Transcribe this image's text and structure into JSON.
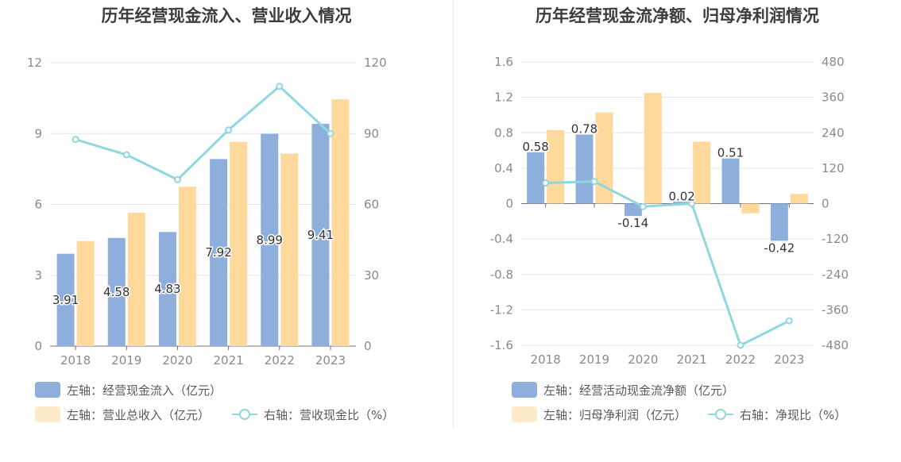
{
  "colors": {
    "bar_primary": "#8eaedb",
    "bar_secondary": "#fed99b",
    "line": "#8fd8de",
    "grid": "#e3e6f0",
    "axis": "#6e7079"
  },
  "chart_data": [
    {
      "type": "bar",
      "title": "历年经营现金流入、营业收入情况",
      "categories": [
        "2018",
        "2019",
        "2020",
        "2021",
        "2022",
        "2023"
      ],
      "left_axis": {
        "ylim": [
          0,
          12
        ],
        "ticks": [
          "0",
          "3",
          "6",
          "9",
          "12"
        ]
      },
      "right_axis": {
        "ylim": [
          0,
          120
        ],
        "ticks": [
          "0",
          "30",
          "60",
          "90",
          "120"
        ]
      },
      "series": [
        {
          "name": "左轴：经营现金流入（亿元）",
          "type": "bar",
          "axis": "left",
          "values": [
            3.91,
            4.58,
            4.83,
            7.92,
            8.99,
            9.41
          ],
          "labels": [
            "3.91",
            "4.58",
            "4.83",
            "7.92",
            "8.99",
            "9.41"
          ]
        },
        {
          "name": "左轴：营业总收入（亿元）",
          "type": "bar",
          "axis": "left",
          "values": [
            4.45,
            5.65,
            6.75,
            8.65,
            8.15,
            10.45
          ]
        },
        {
          "name": "右轴：营收现金比（%）",
          "type": "line",
          "axis": "right",
          "values": [
            87.5,
            81,
            70.5,
            91.5,
            110,
            90
          ]
        }
      ],
      "grid": true,
      "legend_position": "bottom-left"
    },
    {
      "type": "bar",
      "title": "历年经营现金流净额、归母净利润情况",
      "categories": [
        "2018",
        "2019",
        "2020",
        "2021",
        "2022",
        "2023"
      ],
      "left_axis": {
        "ylim": [
          -1.6,
          1.6
        ],
        "ticks": [
          "-1.6",
          "-1.2",
          "-0.8",
          "-0.4",
          "0",
          "0.4",
          "0.8",
          "1.2",
          "1.6"
        ]
      },
      "right_axis": {
        "ylim": [
          -480,
          480
        ],
        "ticks": [
          "-480",
          "-360",
          "-240",
          "-120",
          "0",
          "120",
          "240",
          "360",
          "480"
        ]
      },
      "series": [
        {
          "name": "左轴：经营活动现金流净额（亿元）",
          "type": "bar",
          "axis": "left",
          "values": [
            0.58,
            0.78,
            -0.14,
            0.02,
            0.51,
            -0.42
          ],
          "labels": [
            "0.58",
            "0.78",
            "-0.14",
            "0.02",
            "0.51",
            "-0.42"
          ]
        },
        {
          "name": "左轴：归母净利润（亿元）",
          "type": "bar",
          "axis": "left",
          "values": [
            0.83,
            1.03,
            1.25,
            0.7,
            -0.11,
            0.11
          ]
        },
        {
          "name": "右轴：净现比（%）",
          "type": "line",
          "axis": "right",
          "values": [
            70,
            75,
            -10,
            0,
            -480,
            -397
          ]
        }
      ],
      "grid": true,
      "legend_position": "bottom-left"
    }
  ]
}
